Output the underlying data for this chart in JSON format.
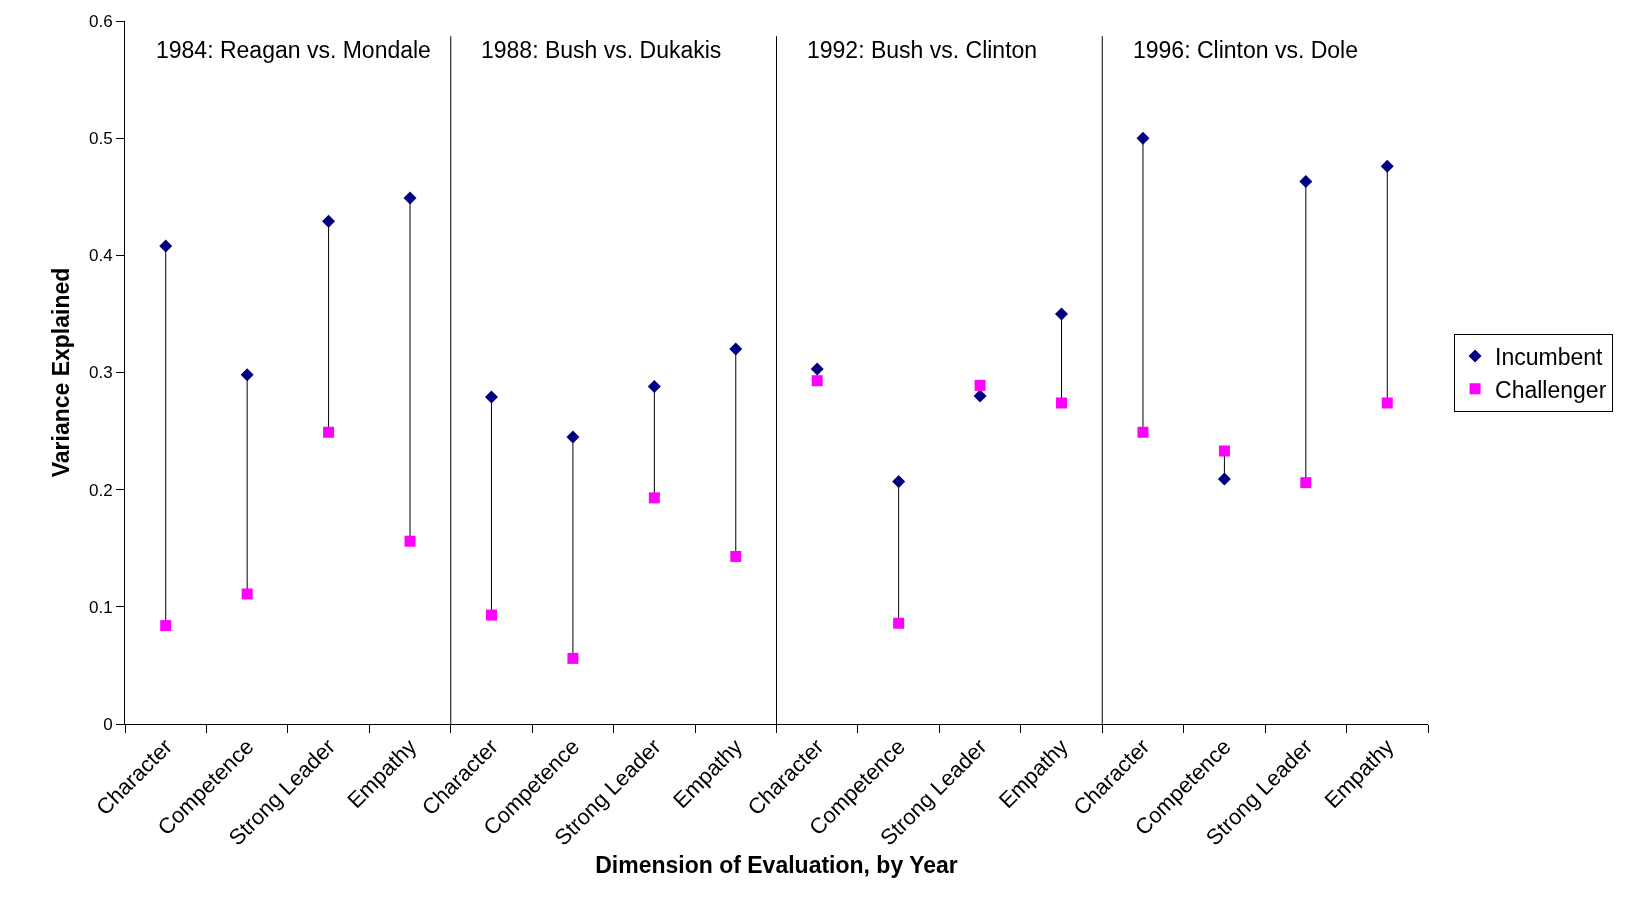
{
  "chart_data": {
    "type": "scatter",
    "categories": [
      "Character",
      "Competence",
      "Strong Leader",
      "Empathy",
      "Character",
      "Competence",
      "Strong Leader",
      "Empathy",
      "Character",
      "Competence",
      "Strong Leader",
      "Empathy",
      "Character",
      "Competence",
      "Strong Leader",
      "Empathy"
    ],
    "series": [
      {
        "name": "Incumbent",
        "color": "#000080",
        "marker": "diamond",
        "values": [
          0.408,
          0.298,
          0.429,
          0.449,
          0.279,
          0.245,
          0.288,
          0.32,
          0.303,
          0.207,
          0.28,
          0.35,
          0.5,
          0.209,
          0.463,
          0.476
        ]
      },
      {
        "name": "Challenger",
        "color": "#ff00ff",
        "marker": "square",
        "values": [
          0.084,
          0.111,
          0.249,
          0.156,
          0.093,
          0.056,
          0.193,
          0.143,
          0.293,
          0.086,
          0.289,
          0.274,
          0.249,
          0.233,
          0.206,
          0.274
        ]
      }
    ],
    "ylim": [
      0,
      0.6
    ],
    "yticks": [
      0,
      0.1,
      0.2,
      0.3,
      0.4,
      0.5,
      0.6
    ],
    "xlabel": "Dimension of Evaluation, by Year",
    "ylabel": "Variance Explained",
    "annotations": [
      "1984: Reagan vs. Mondale",
      "1988: Bush vs. Dukakis",
      "1992: Bush vs. Clinton",
      "1996: Clinton vs. Dole"
    ],
    "grid": false,
    "legend": "right"
  }
}
